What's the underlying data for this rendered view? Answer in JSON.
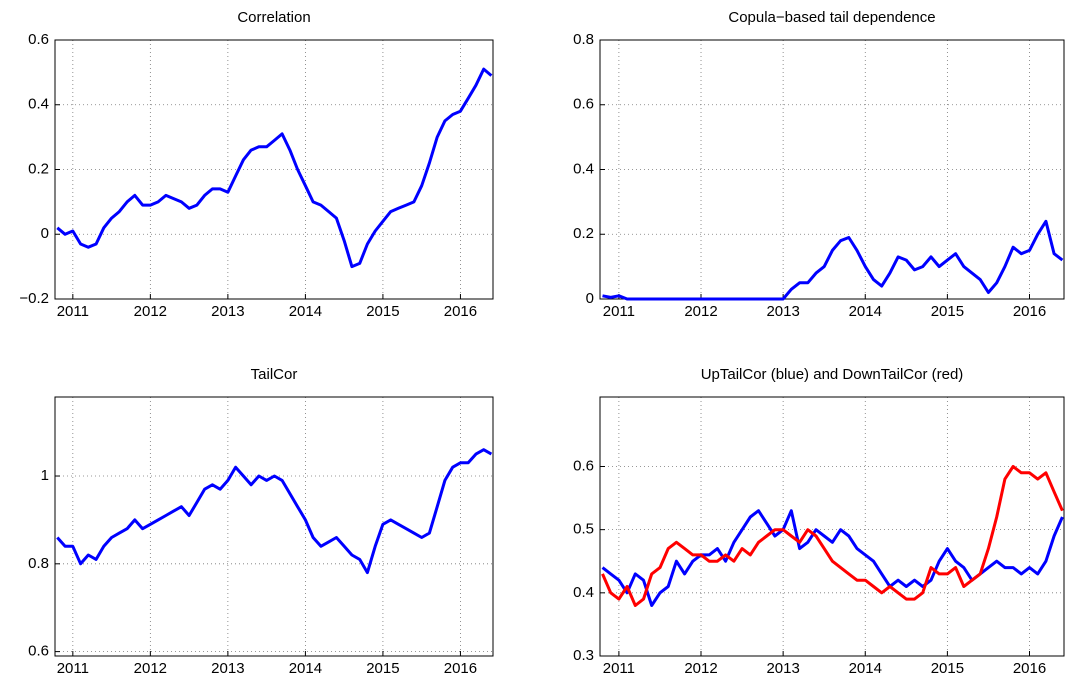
{
  "chart_data": [
    {
      "type": "line",
      "title": "Correlation",
      "x": [
        2010.8,
        2010.9,
        2011.0,
        2011.1,
        2011.2,
        2011.3,
        2011.4,
        2011.5,
        2011.6,
        2011.7,
        2011.8,
        2011.9,
        2012.0,
        2012.1,
        2012.2,
        2012.3,
        2012.4,
        2012.5,
        2012.6,
        2012.7,
        2012.8,
        2012.9,
        2013.0,
        2013.1,
        2013.2,
        2013.3,
        2013.4,
        2013.5,
        2013.6,
        2013.7,
        2013.8,
        2013.9,
        2014.0,
        2014.1,
        2014.2,
        2014.3,
        2014.4,
        2014.5,
        2014.6,
        2014.7,
        2014.8,
        2014.9,
        2015.0,
        2015.1,
        2015.2,
        2015.3,
        2015.4,
        2015.5,
        2015.6,
        2015.7,
        2015.8,
        2015.9,
        2016.0,
        2016.1,
        2016.2,
        2016.3,
        2016.4
      ],
      "series": [
        {
          "color": "#0000ff",
          "values": [
            0.02,
            0.0,
            0.01,
            -0.03,
            -0.04,
            -0.03,
            0.02,
            0.05,
            0.07,
            0.1,
            0.12,
            0.09,
            0.09,
            0.1,
            0.12,
            0.11,
            0.1,
            0.08,
            0.09,
            0.12,
            0.14,
            0.14,
            0.13,
            0.18,
            0.23,
            0.26,
            0.27,
            0.27,
            0.29,
            0.31,
            0.26,
            0.2,
            0.15,
            0.1,
            0.09,
            0.07,
            0.05,
            -0.02,
            -0.1,
            -0.09,
            -0.03,
            0.01,
            0.04,
            0.07,
            0.08,
            0.09,
            0.1,
            0.15,
            0.22,
            0.3,
            0.35,
            0.37,
            0.38,
            0.42,
            0.46,
            0.51,
            0.49
          ]
        }
      ],
      "xlim": [
        2010.77,
        2016.42
      ],
      "xticks": [
        2011,
        2012,
        2013,
        2014,
        2015,
        2016
      ],
      "ylim": [
        -0.2,
        0.6
      ],
      "yticks": [
        {
          "value": -0.2,
          "label": "−0.2"
        },
        0,
        0.2,
        0.4,
        0.6
      ],
      "grid": true
    },
    {
      "type": "line",
      "title": "Copula−based tail dependence",
      "x": [
        2010.8,
        2010.9,
        2011.0,
        2011.1,
        2011.2,
        2011.3,
        2011.4,
        2011.5,
        2011.6,
        2011.7,
        2011.8,
        2011.9,
        2012.0,
        2012.1,
        2012.2,
        2012.3,
        2012.4,
        2012.5,
        2012.6,
        2012.7,
        2012.8,
        2012.9,
        2013.0,
        2013.1,
        2013.2,
        2013.3,
        2013.4,
        2013.5,
        2013.6,
        2013.7,
        2013.8,
        2013.9,
        2014.0,
        2014.1,
        2014.2,
        2014.3,
        2014.4,
        2014.5,
        2014.6,
        2014.7,
        2014.8,
        2014.9,
        2015.0,
        2015.1,
        2015.2,
        2015.3,
        2015.4,
        2015.5,
        2015.6,
        2015.7,
        2015.8,
        2015.9,
        2016.0,
        2016.1,
        2016.2,
        2016.3,
        2016.4
      ],
      "series": [
        {
          "color": "#0000ff",
          "values": [
            0.01,
            0.005,
            0.01,
            0,
            0,
            0,
            0,
            0,
            0,
            0,
            0,
            0,
            0,
            0,
            0,
            0,
            0,
            0,
            0,
            0,
            0,
            0,
            0.0,
            0.03,
            0.05,
            0.05,
            0.08,
            0.1,
            0.15,
            0.18,
            0.19,
            0.15,
            0.1,
            0.06,
            0.04,
            0.08,
            0.13,
            0.12,
            0.09,
            0.1,
            0.13,
            0.1,
            0.12,
            0.14,
            0.1,
            0.08,
            0.06,
            0.02,
            0.05,
            0.1,
            0.16,
            0.14,
            0.15,
            0.2,
            0.24,
            0.14,
            0.12
          ]
        }
      ],
      "xlim": [
        2010.77,
        2016.42
      ],
      "xticks": [
        2011,
        2012,
        2013,
        2014,
        2015,
        2016
      ],
      "ylim": [
        0,
        0.8
      ],
      "yticks": [
        0,
        0.2,
        0.4,
        0.6,
        0.8
      ],
      "grid": true
    },
    {
      "type": "line",
      "title": "TailCor",
      "x": [
        2010.8,
        2010.9,
        2011.0,
        2011.1,
        2011.2,
        2011.3,
        2011.4,
        2011.5,
        2011.6,
        2011.7,
        2011.8,
        2011.9,
        2012.0,
        2012.1,
        2012.2,
        2012.3,
        2012.4,
        2012.5,
        2012.6,
        2012.7,
        2012.8,
        2012.9,
        2013.0,
        2013.1,
        2013.2,
        2013.3,
        2013.4,
        2013.5,
        2013.6,
        2013.7,
        2013.8,
        2013.9,
        2014.0,
        2014.1,
        2014.2,
        2014.3,
        2014.4,
        2014.5,
        2014.6,
        2014.7,
        2014.8,
        2014.9,
        2015.0,
        2015.1,
        2015.2,
        2015.3,
        2015.4,
        2015.5,
        2015.6,
        2015.7,
        2015.8,
        2015.9,
        2016.0,
        2016.1,
        2016.2,
        2016.3,
        2016.4
      ],
      "series": [
        {
          "color": "#0000ff",
          "values": [
            0.86,
            0.84,
            0.84,
            0.8,
            0.82,
            0.81,
            0.84,
            0.86,
            0.87,
            0.88,
            0.9,
            0.88,
            0.89,
            0.9,
            0.91,
            0.92,
            0.93,
            0.91,
            0.94,
            0.97,
            0.98,
            0.97,
            0.99,
            1.02,
            1.0,
            0.98,
            1.0,
            0.99,
            1.0,
            0.99,
            0.96,
            0.93,
            0.9,
            0.86,
            0.84,
            0.85,
            0.86,
            0.84,
            0.82,
            0.81,
            0.78,
            0.84,
            0.89,
            0.9,
            0.89,
            0.88,
            0.87,
            0.86,
            0.87,
            0.93,
            0.99,
            1.02,
            1.03,
            1.03,
            1.05,
            1.06,
            1.05
          ]
        }
      ],
      "xlim": [
        2010.77,
        2016.42
      ],
      "xticks": [
        2011,
        2012,
        2013,
        2014,
        2015,
        2016
      ],
      "ylim": [
        0.59,
        1.18
      ],
      "yticks": [
        0.6,
        0.8,
        1
      ],
      "grid": true
    },
    {
      "type": "line",
      "title": "UpTailCor (blue) and DownTailCor (red)",
      "x": [
        2010.8,
        2010.9,
        2011.0,
        2011.1,
        2011.2,
        2011.3,
        2011.4,
        2011.5,
        2011.6,
        2011.7,
        2011.8,
        2011.9,
        2012.0,
        2012.1,
        2012.2,
        2012.3,
        2012.4,
        2012.5,
        2012.6,
        2012.7,
        2012.8,
        2012.9,
        2013.0,
        2013.1,
        2013.2,
        2013.3,
        2013.4,
        2013.5,
        2013.6,
        2013.7,
        2013.8,
        2013.9,
        2014.0,
        2014.1,
        2014.2,
        2014.3,
        2014.4,
        2014.5,
        2014.6,
        2014.7,
        2014.8,
        2014.9,
        2015.0,
        2015.1,
        2015.2,
        2015.3,
        2015.4,
        2015.5,
        2015.6,
        2015.7,
        2015.8,
        2015.9,
        2016.0,
        2016.1,
        2016.2,
        2016.3,
        2016.4
      ],
      "series": [
        {
          "color": "#0000ff",
          "values": [
            0.44,
            0.43,
            0.42,
            0.4,
            0.43,
            0.42,
            0.38,
            0.4,
            0.41,
            0.45,
            0.43,
            0.45,
            0.46,
            0.46,
            0.47,
            0.45,
            0.48,
            0.5,
            0.52,
            0.53,
            0.51,
            0.49,
            0.5,
            0.53,
            0.47,
            0.48,
            0.5,
            0.49,
            0.48,
            0.5,
            0.49,
            0.47,
            0.46,
            0.45,
            0.43,
            0.41,
            0.42,
            0.41,
            0.42,
            0.41,
            0.42,
            0.45,
            0.47,
            0.45,
            0.44,
            0.42,
            0.43,
            0.44,
            0.45,
            0.44,
            0.44,
            0.43,
            0.44,
            0.43,
            0.45,
            0.49,
            0.52
          ]
        },
        {
          "color": "#ff0000",
          "values": [
            0.43,
            0.4,
            0.39,
            0.41,
            0.38,
            0.39,
            0.43,
            0.44,
            0.47,
            0.48,
            0.47,
            0.46,
            0.46,
            0.45,
            0.45,
            0.46,
            0.45,
            0.47,
            0.46,
            0.48,
            0.49,
            0.5,
            0.5,
            0.49,
            0.48,
            0.5,
            0.49,
            0.47,
            0.45,
            0.44,
            0.43,
            0.42,
            0.42,
            0.41,
            0.4,
            0.41,
            0.4,
            0.39,
            0.39,
            0.4,
            0.44,
            0.43,
            0.43,
            0.44,
            0.41,
            0.42,
            0.43,
            0.47,
            0.52,
            0.58,
            0.6,
            0.59,
            0.59,
            0.58,
            0.59,
            0.56,
            0.53
          ]
        }
      ],
      "xlim": [
        2010.77,
        2016.42
      ],
      "xticks": [
        2011,
        2012,
        2013,
        2014,
        2015,
        2016
      ],
      "ylim": [
        0.3,
        0.71
      ],
      "yticks": [
        0.3,
        0.4,
        0.5,
        0.6
      ],
      "grid": true
    }
  ]
}
